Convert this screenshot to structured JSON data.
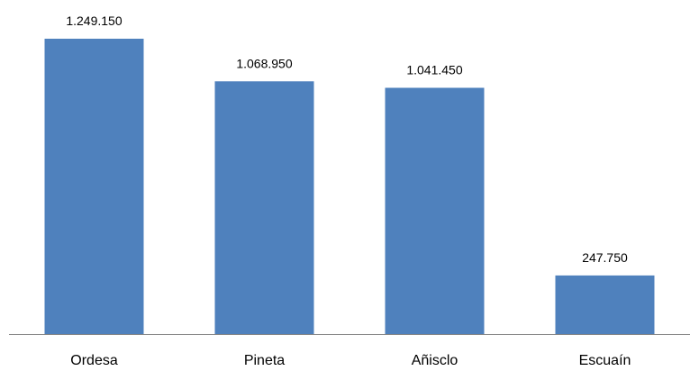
{
  "chart_data": {
    "type": "bar",
    "categories": [
      "Ordesa",
      "Pineta",
      "Añisclo",
      "Escuaín"
    ],
    "values": [
      1249150,
      1068950,
      1041450,
      247750
    ],
    "value_labels": [
      "1.249.150",
      "1.068.950",
      "1.041.450",
      "247.750"
    ],
    "title": "",
    "xlabel": "",
    "ylabel": "",
    "ylim": [
      0,
      1249150
    ],
    "grid": false,
    "legend": "none",
    "bar_color": "#4f81bd"
  }
}
